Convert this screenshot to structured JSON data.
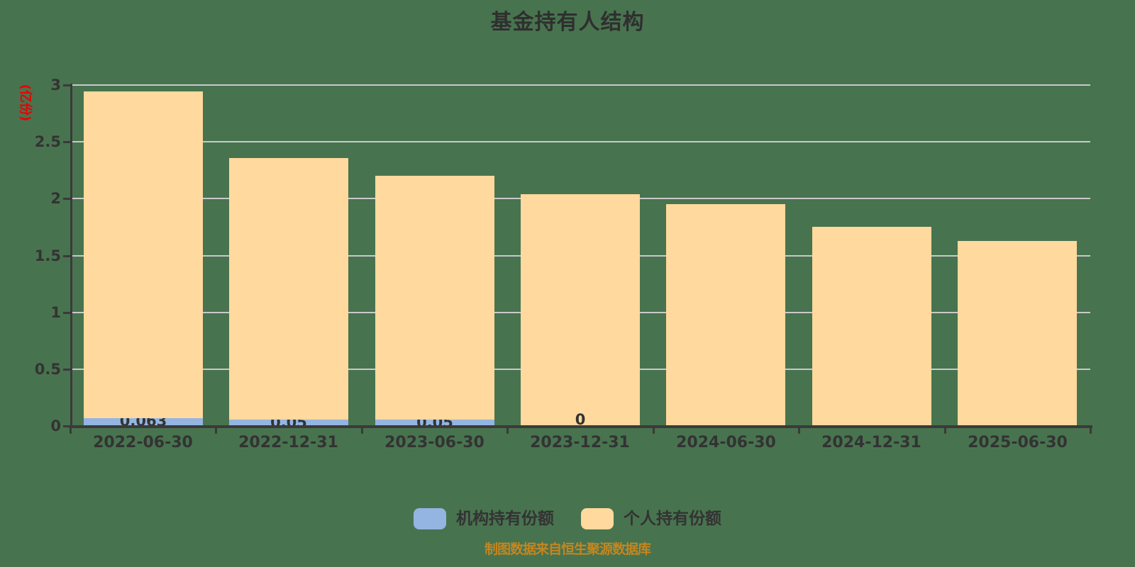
{
  "title": "基金持有人结构",
  "footer": "制图数据来自恒生聚源数据库",
  "y_axis": {
    "name": "(亿份)",
    "ticks": [
      "3",
      "2.5",
      "2",
      "1.5",
      "1",
      "0.5",
      "0"
    ]
  },
  "legend": {
    "items": [
      {
        "label": "机构持有份额",
        "color": "#94B5E1"
      },
      {
        "label": "个人持有份额",
        "color": "#FFD99D"
      }
    ]
  },
  "colors": {
    "background": "#48734F",
    "institutional_bar": "#94B5E1",
    "individual_bar": "#FFD99D",
    "gridline": "#C9C9C9",
    "axis": "#3A3A3A",
    "text": "#333333",
    "y_axis_name": "#EC0000",
    "footer": "#C38621"
  },
  "chart_data": {
    "type": "bar",
    "stacked": true,
    "title": "基金持有人结构",
    "ylabel": "(亿份)",
    "xlabel": "",
    "ylim": [
      0,
      3
    ],
    "ytick_step": 0.5,
    "grid": true,
    "legend_position": "bottom",
    "categories": [
      "2022-06-30",
      "2022-12-31",
      "2023-06-30",
      "2023-12-31",
      "2024-06-30",
      "2024-12-31",
      "2025-06-30"
    ],
    "series": [
      {
        "name": "机构持有份额",
        "color": "#94B5E1",
        "values": [
          0.063,
          0.05,
          0.05,
          0,
          0,
          0,
          0
        ],
        "labels": [
          "0.063",
          "0.05",
          "0.05",
          "0",
          "",
          "",
          ""
        ]
      },
      {
        "name": "个人持有份额",
        "color": "#FFD99D",
        "values": [
          2.88,
          2.31,
          2.15,
          2.04,
          1.95,
          1.75,
          1.63
        ],
        "labels": [
          "",
          "",
          "",
          "",
          "",
          "",
          ""
        ]
      }
    ],
    "totals": [
      2.943,
      2.36,
      2.2,
      2.04,
      1.95,
      1.75,
      1.63
    ]
  }
}
